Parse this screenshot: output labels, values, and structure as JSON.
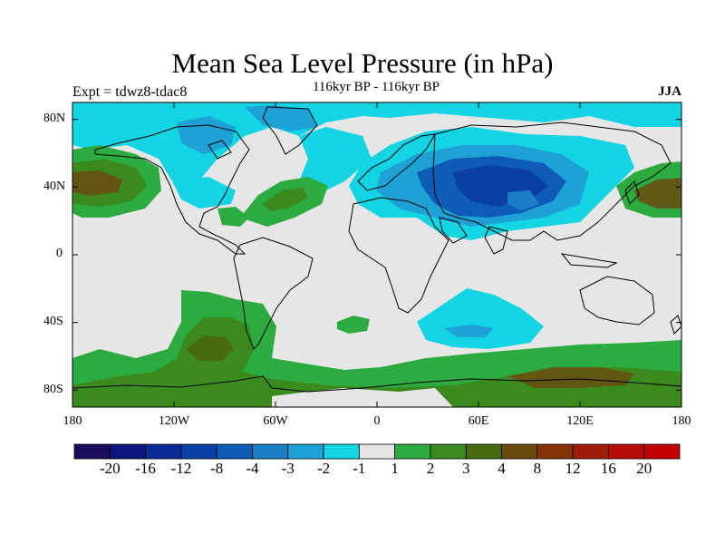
{
  "header": {
    "title": "Mean Sea Level Pressure (in hPa)",
    "subtitle": "116kyr BP - 116kyr BP",
    "experiment": "Expt = tdwz8-tdac8",
    "season": "JJA"
  },
  "axes": {
    "lat_labels": [
      "80N",
      "40N",
      "0",
      "40S",
      "80S"
    ],
    "lon_labels": [
      "180",
      "120W",
      "60W",
      "0",
      "60E",
      "120E",
      "180"
    ]
  },
  "colorbar": {
    "labels": [
      "-20",
      "-16",
      "-12",
      "-8",
      "-4",
      "-3",
      "-2",
      "-1",
      "1",
      "2",
      "3",
      "4",
      "8",
      "12",
      "16",
      "20"
    ],
    "colors": [
      "#1a0f5e",
      "#0c1580",
      "#0a2a96",
      "#0b3fa6",
      "#0e5cb6",
      "#1b7fc7",
      "#1ea2d6",
      "#12d4e2",
      "#e6e6e6",
      "#2cab40",
      "#3a8a1e",
      "#4a6a10",
      "#6b4a10",
      "#86330c",
      "#a01c08",
      "#b70b05",
      "#c40000"
    ]
  },
  "chart_data": {
    "type": "heatmap",
    "title": "Mean Sea Level Pressure (in hPa)",
    "subtitle": "116kyr BP - 116kyr BP",
    "projection": "cylindrical equidistant",
    "lon_range": [
      -180,
      180
    ],
    "lat_range": [
      -90,
      90
    ],
    "units": "hPa",
    "contour_levels": [
      -20,
      -16,
      -12,
      -8,
      -4,
      -3,
      -2,
      -1,
      1,
      2,
      3,
      4,
      8,
      12,
      16,
      20
    ],
    "features": [
      {
        "name": "North Pacific high (west)",
        "lon": -172,
        "lat": 42,
        "peak": 4
      },
      {
        "name": "North Pacific high (east)",
        "lon": 170,
        "lat": 40,
        "peak": 4
      },
      {
        "name": "North Atlantic positive anomaly",
        "lon": -55,
        "lat": 35,
        "peak": 3
      },
      {
        "name": "Asian low",
        "lon": 75,
        "lat": 42,
        "peak": -8
      },
      {
        "name": "Southern Ocean positive band",
        "lon": 0,
        "lat": -65,
        "peak": 4
      },
      {
        "name": "South Pacific positive anomaly",
        "lon": -100,
        "lat": -55,
        "peak": 4
      },
      {
        "name": "Indian Ocean negative anomaly",
        "lon": 60,
        "lat": -40,
        "peak": -2
      }
    ]
  }
}
